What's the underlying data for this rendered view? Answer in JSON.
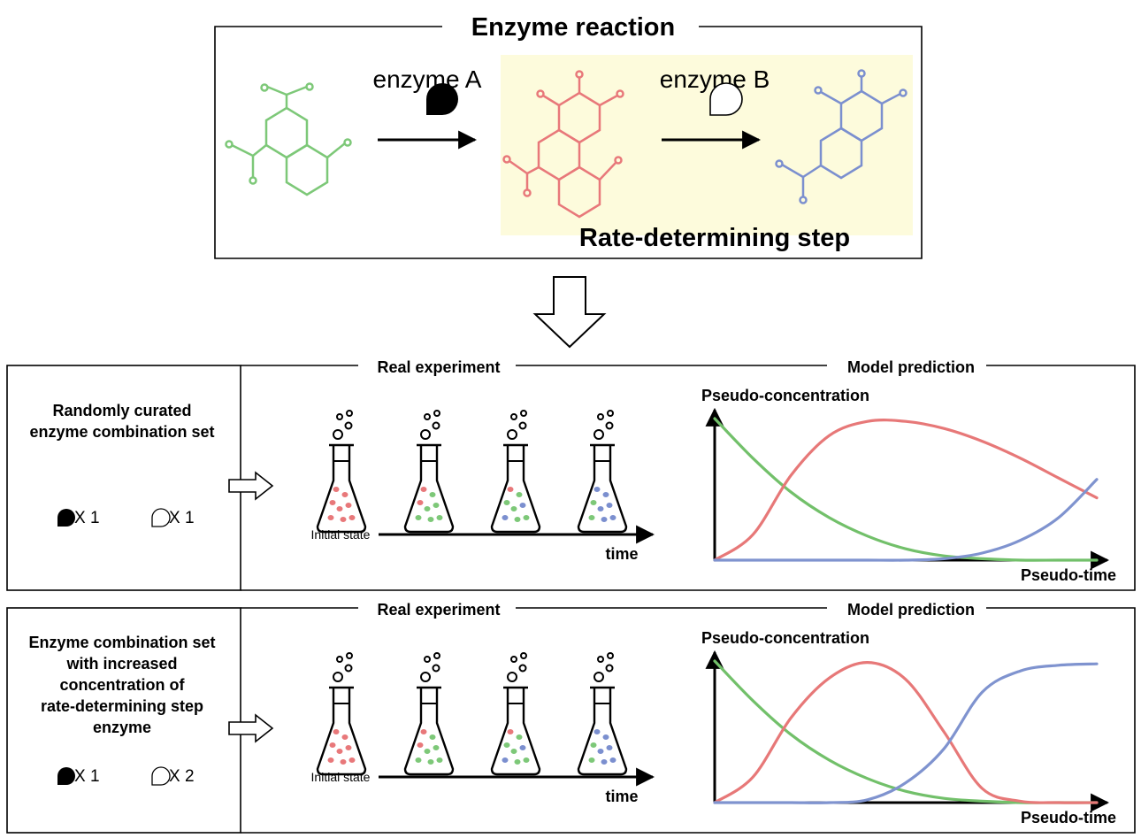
{
  "top": {
    "title": "Enzyme reaction",
    "enzyme_a_label": "enzyme A",
    "enzyme_b_label": "enzyme B",
    "rate_step_label": "Rate-determining step"
  },
  "colors": {
    "green": "#7dc878",
    "red": "#e8787a",
    "blue": "#7b8fcf",
    "highlight": "#fdfbdc",
    "curve_green": "#72c06a",
    "curve_red": "#e77878",
    "curve_blue": "#7f93cf"
  },
  "panels": [
    {
      "condition_lines": [
        "Randomly curated",
        "enzyme combination set"
      ],
      "enzyme_a_count": "X 1",
      "enzyme_b_count": "X 1",
      "real_label": "Real experiment",
      "model_label": "Model prediction",
      "initial_label": "Initial state",
      "time_label": "time",
      "ylabel": "Pseudo-concentration",
      "xlabel": "Pseudo-time"
    },
    {
      "condition_lines": [
        "Enzyme combination set",
        "with increased",
        "concentration of",
        "rate-determining step",
        "enzyme"
      ],
      "enzyme_a_count": "X 1",
      "enzyme_b_count": "X 2",
      "real_label": "Real experiment",
      "model_label": "Model prediction",
      "initial_label": "Initial state",
      "time_label": "time",
      "ylabel": "Pseudo-concentration",
      "xlabel": "Pseudo-time"
    }
  ],
  "chart_data": [
    {
      "type": "line",
      "xlabel": "Pseudo-time",
      "ylabel": "Pseudo-concentration",
      "x": [
        0,
        0.1,
        0.2,
        0.3,
        0.4,
        0.5,
        0.6,
        0.7,
        0.8,
        0.9,
        1.0
      ],
      "series": [
        {
          "values": [
            1.0,
            0.72,
            0.48,
            0.3,
            0.17,
            0.08,
            0.03,
            0.01,
            0.0,
            0.0,
            0.0
          ]
        },
        {
          "values": [
            0.0,
            0.18,
            0.6,
            0.88,
            0.98,
            0.98,
            0.93,
            0.84,
            0.72,
            0.58,
            0.44
          ]
        },
        {
          "values": [
            0.0,
            0.0,
            0.0,
            0.0,
            0.0,
            0.0,
            0.01,
            0.05,
            0.14,
            0.3,
            0.57
          ]
        }
      ]
    },
    {
      "type": "line",
      "xlabel": "Pseudo-time",
      "ylabel": "Pseudo-concentration",
      "x": [
        0,
        0.1,
        0.2,
        0.3,
        0.4,
        0.5,
        0.6,
        0.7,
        0.8,
        0.9,
        1.0
      ],
      "series": [
        {
          "values": [
            1.0,
            0.72,
            0.48,
            0.3,
            0.17,
            0.08,
            0.03,
            0.01,
            0.0,
            0.0,
            0.0
          ]
        },
        {
          "values": [
            0.0,
            0.18,
            0.6,
            0.88,
            0.99,
            0.87,
            0.5,
            0.1,
            0.01,
            0.0,
            0.0
          ]
        },
        {
          "values": [
            0.0,
            0.0,
            0.0,
            0.0,
            0.02,
            0.14,
            0.38,
            0.78,
            0.93,
            0.97,
            0.98
          ]
        }
      ]
    }
  ]
}
